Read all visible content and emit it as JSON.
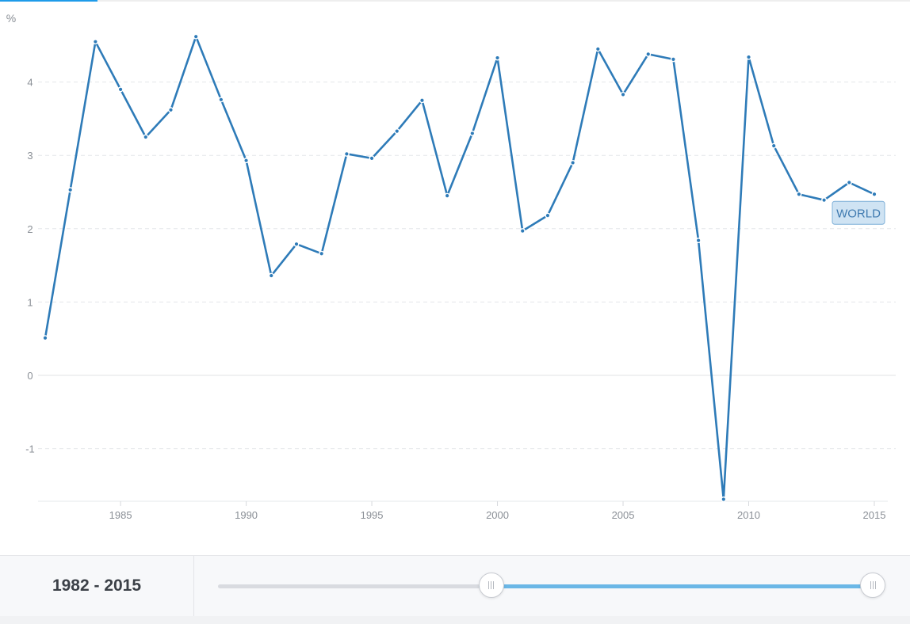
{
  "progress": {
    "fraction": 0.107,
    "color": "#1e9be9"
  },
  "chart_data": {
    "type": "line",
    "ylabel": "%",
    "xlim": [
      1982,
      2015.5
    ],
    "ylim": [
      -1.7,
      4.9
    ],
    "yticks": [
      -1,
      0,
      1,
      2,
      3,
      4
    ],
    "xticks": [
      1985,
      1990,
      1995,
      2000,
      2005,
      2010,
      2015
    ],
    "grid": "horizontal-dashed",
    "series": [
      {
        "name": "WORLD",
        "color": "#2e7bb8",
        "x": [
          1982,
          1983,
          1984,
          1985,
          1986,
          1987,
          1988,
          1989,
          1990,
          1991,
          1992,
          1993,
          1994,
          1995,
          1996,
          1997,
          1998,
          1999,
          2000,
          2001,
          2002,
          2003,
          2004,
          2005,
          2006,
          2007,
          2008,
          2009,
          2010,
          2011,
          2012,
          2013,
          2014,
          2015
        ],
        "values": [
          0.51,
          2.53,
          4.55,
          3.9,
          3.25,
          3.62,
          4.62,
          3.76,
          2.93,
          1.36,
          1.79,
          1.66,
          3.02,
          2.96,
          3.33,
          3.75,
          2.45,
          3.3,
          4.33,
          1.97,
          2.18,
          2.9,
          4.45,
          3.83,
          4.38,
          4.31,
          1.84,
          -1.69,
          4.34,
          3.13,
          2.47,
          2.39,
          2.63,
          2.47
        ]
      }
    ]
  },
  "range": {
    "label": "1982 - 2015",
    "start_fraction": 0.398,
    "end_fraction": 1.0
  }
}
